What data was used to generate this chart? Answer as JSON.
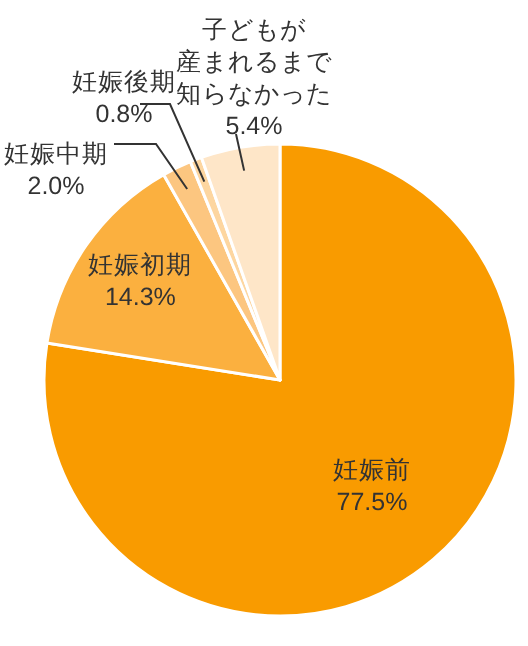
{
  "chart_data": {
    "type": "pie",
    "categories": [
      "妊娠前",
      "妊娠初期",
      "妊娠中期",
      "妊娠後期",
      "子どもが産まれるまで知らなかった"
    ],
    "values": [
      77.5,
      14.3,
      2.0,
      0.8,
      5.4
    ],
    "colors": [
      "#f99b00",
      "#fbb03f",
      "#fcc680",
      "#fdd6a0",
      "#fee6c8"
    ],
    "value_labels": [
      "77.5%",
      "14.3%",
      "2.0%",
      "0.8%",
      "5.4%"
    ]
  }
}
